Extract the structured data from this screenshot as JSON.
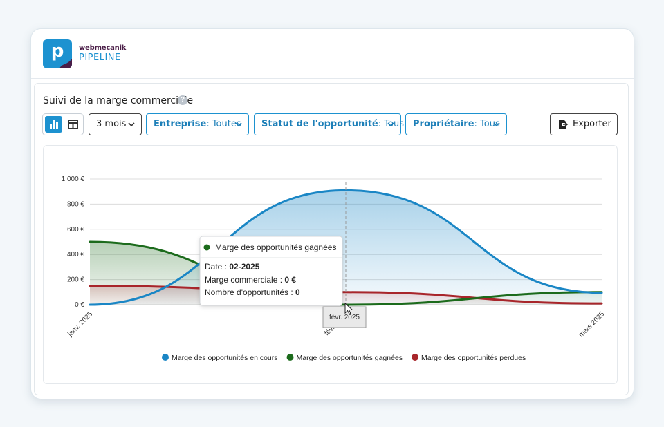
{
  "brand": {
    "top": "webmecanik",
    "bottom": "PIPELINE",
    "glyph": "p",
    "color": "#1d92d0"
  },
  "panel": {
    "title": "Suivi de la marge commerciale",
    "help": "?"
  },
  "toolbar": {
    "period": "3 mois",
    "filters": [
      {
        "key": "Entreprise",
        "value": "Toutes"
      },
      {
        "key": "Statut de l'opportunité",
        "value": "Tous"
      },
      {
        "key": "Propriétaire",
        "value": "Tous"
      }
    ],
    "export": "Exporter"
  },
  "chart_data": {
    "type": "area",
    "x": [
      "janv. 2025",
      "févr. 2025",
      "mars 2025"
    ],
    "y_ticks": [
      "0 €",
      "200 €",
      "400 €",
      "600 €",
      "800 €",
      "1 000 €"
    ],
    "ylim": [
      0,
      1000
    ],
    "grid": true,
    "legend_position": "bottom",
    "series": [
      {
        "name": "Marge des opportunités en cours",
        "color": "#1a86c5",
        "values": [
          0,
          910,
          95
        ]
      },
      {
        "name": "Marge des opportunités gagnées",
        "color": "#1c6b1c",
        "values": [
          500,
          0,
          100
        ]
      },
      {
        "name": "Marge des opportunités perdues",
        "color": "#a8262b",
        "values": [
          150,
          100,
          10
        ]
      }
    ],
    "tooltip": {
      "series": "Marge des opportunités gagnées",
      "date_label": "Date : ",
      "date": "02-2025",
      "marge_label": "Marge commerciale : ",
      "marge": "0 €",
      "count_label": "Nombre d'opportunités : ",
      "count": "0"
    },
    "hover_label": "févr. 2025"
  }
}
